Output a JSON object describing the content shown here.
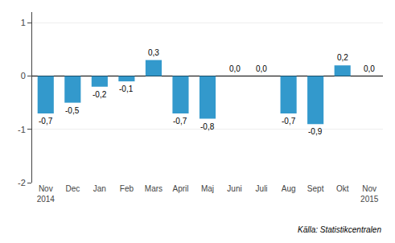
{
  "chart_data": {
    "type": "bar",
    "categories": [
      "Nov\n2014",
      "Dec",
      "Jan",
      "Feb",
      "Mars",
      "April",
      "Maj",
      "Juni",
      "Juli",
      "Aug",
      "Sept",
      "Okt",
      "Nov\n2015"
    ],
    "values": [
      -0.7,
      -0.5,
      -0.2,
      -0.1,
      0.3,
      -0.7,
      -0.8,
      0.0,
      0.0,
      -0.7,
      -0.9,
      0.2,
      0.0
    ],
    "value_labels": [
      "-0,7",
      "-0,5",
      "-0,2",
      "-0,1",
      "0,3",
      "-0,7",
      "-0,8",
      "0,0",
      "0,0",
      "-0,7",
      "-0,9",
      "0,2",
      "0,0"
    ],
    "data_labels": true,
    "color": "#3399cc",
    "ylim": [
      -2,
      1.2
    ],
    "yticks": [
      -2,
      -1,
      0,
      1
    ],
    "grid": true,
    "annotations": [
      "Källa: Statistikcentralen"
    ]
  }
}
